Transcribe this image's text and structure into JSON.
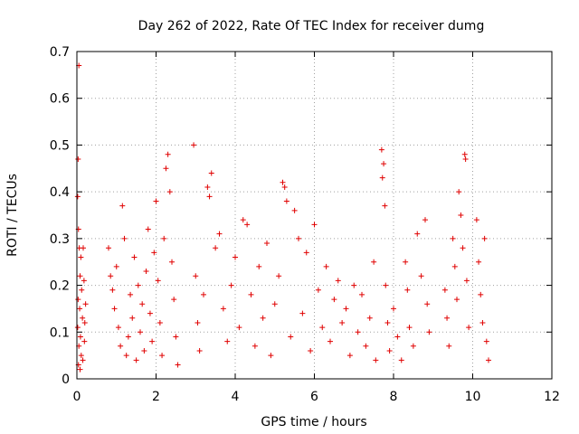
{
  "chart_data": {
    "type": "scatter",
    "title": "Day 262 of 2022, Rate Of TEC Index for receiver dumg",
    "xlabel": "GPS time / hours",
    "ylabel": "ROTI / TECUs",
    "xlim": [
      0,
      12
    ],
    "ylim": [
      0,
      0.7
    ],
    "xticks": [
      0,
      2,
      4,
      6,
      8,
      10,
      12
    ],
    "yticks": [
      0,
      0.1,
      0.2,
      0.3,
      0.4,
      0.5,
      0.6,
      0.7
    ],
    "xtick_labels": [
      "0",
      "2",
      "4",
      "6",
      "8",
      "10",
      "12"
    ],
    "ytick_labels": [
      "0",
      "0.1",
      "0.2",
      "0.3",
      "0.4",
      "0.5",
      "0.6",
      "0.7"
    ],
    "grid": true,
    "marker": "+",
    "marker_color": "#e00000",
    "series": [
      {
        "points": [
          [
            0.05,
            0.67
          ],
          [
            0.03,
            0.47
          ],
          [
            0.02,
            0.39
          ],
          [
            0.04,
            0.32
          ],
          [
            0.06,
            0.28
          ],
          [
            0.1,
            0.26
          ],
          [
            0.08,
            0.22
          ],
          [
            0.12,
            0.19
          ],
          [
            0.03,
            0.17
          ],
          [
            0.07,
            0.15
          ],
          [
            0.14,
            0.13
          ],
          [
            0.02,
            0.11
          ],
          [
            0.09,
            0.09
          ],
          [
            0.05,
            0.07
          ],
          [
            0.11,
            0.05
          ],
          [
            0.04,
            0.03
          ],
          [
            0.08,
            0.02
          ],
          [
            0.15,
            0.04
          ],
          [
            0.16,
            0.28
          ],
          [
            0.18,
            0.21
          ],
          [
            0.2,
            0.12
          ],
          [
            0.22,
            0.16
          ],
          [
            0.19,
            0.08
          ],
          [
            0.8,
            0.28
          ],
          [
            0.85,
            0.22
          ],
          [
            0.9,
            0.19
          ],
          [
            0.95,
            0.15
          ],
          [
            1.0,
            0.24
          ],
          [
            1.05,
            0.11
          ],
          [
            1.1,
            0.07
          ],
          [
            1.15,
            0.37
          ],
          [
            1.2,
            0.3
          ],
          [
            1.25,
            0.05
          ],
          [
            1.3,
            0.09
          ],
          [
            1.35,
            0.18
          ],
          [
            1.4,
            0.13
          ],
          [
            1.45,
            0.26
          ],
          [
            1.5,
            0.04
          ],
          [
            1.55,
            0.2
          ],
          [
            1.6,
            0.1
          ],
          [
            1.65,
            0.16
          ],
          [
            1.7,
            0.06
          ],
          [
            1.75,
            0.23
          ],
          [
            1.8,
            0.32
          ],
          [
            1.85,
            0.14
          ],
          [
            1.9,
            0.08
          ],
          [
            1.95,
            0.27
          ],
          [
            2.0,
            0.38
          ],
          [
            2.05,
            0.21
          ],
          [
            2.1,
            0.12
          ],
          [
            2.15,
            0.05
          ],
          [
            2.2,
            0.3
          ],
          [
            2.25,
            0.45
          ],
          [
            2.3,
            0.48
          ],
          [
            2.35,
            0.4
          ],
          [
            2.4,
            0.25
          ],
          [
            2.45,
            0.17
          ],
          [
            2.5,
            0.09
          ],
          [
            2.55,
            0.03
          ],
          [
            2.95,
            0.5
          ],
          [
            3.0,
            0.22
          ],
          [
            3.05,
            0.12
          ],
          [
            3.1,
            0.06
          ],
          [
            3.2,
            0.18
          ],
          [
            3.3,
            0.41
          ],
          [
            3.35,
            0.39
          ],
          [
            3.4,
            0.44
          ],
          [
            3.5,
            0.28
          ],
          [
            3.6,
            0.31
          ],
          [
            3.7,
            0.15
          ],
          [
            3.8,
            0.08
          ],
          [
            3.9,
            0.2
          ],
          [
            4.0,
            0.26
          ],
          [
            4.1,
            0.11
          ],
          [
            4.2,
            0.34
          ],
          [
            4.3,
            0.33
          ],
          [
            4.4,
            0.18
          ],
          [
            4.5,
            0.07
          ],
          [
            4.6,
            0.24
          ],
          [
            4.7,
            0.13
          ],
          [
            4.8,
            0.29
          ],
          [
            4.9,
            0.05
          ],
          [
            5.0,
            0.16
          ],
          [
            5.1,
            0.22
          ],
          [
            5.2,
            0.42
          ],
          [
            5.25,
            0.41
          ],
          [
            5.3,
            0.38
          ],
          [
            5.4,
            0.09
          ],
          [
            5.5,
            0.36
          ],
          [
            5.6,
            0.3
          ],
          [
            5.7,
            0.14
          ],
          [
            5.8,
            0.27
          ],
          [
            5.9,
            0.06
          ],
          [
            6.0,
            0.33
          ],
          [
            6.1,
            0.19
          ],
          [
            6.2,
            0.11
          ],
          [
            6.3,
            0.24
          ],
          [
            6.4,
            0.08
          ],
          [
            6.5,
            0.17
          ],
          [
            6.6,
            0.21
          ],
          [
            6.7,
            0.12
          ],
          [
            6.8,
            0.15
          ],
          [
            6.9,
            0.05
          ],
          [
            7.0,
            0.2
          ],
          [
            7.1,
            0.1
          ],
          [
            7.2,
            0.18
          ],
          [
            7.3,
            0.07
          ],
          [
            7.4,
            0.13
          ],
          [
            7.5,
            0.25
          ],
          [
            7.55,
            0.04
          ],
          [
            7.7,
            0.49
          ],
          [
            7.75,
            0.46
          ],
          [
            7.72,
            0.43
          ],
          [
            7.78,
            0.37
          ],
          [
            7.8,
            0.2
          ],
          [
            7.85,
            0.12
          ],
          [
            7.9,
            0.06
          ],
          [
            8.0,
            0.15
          ],
          [
            8.1,
            0.09
          ],
          [
            8.2,
            0.04
          ],
          [
            8.3,
            0.25
          ],
          [
            8.35,
            0.19
          ],
          [
            8.4,
            0.11
          ],
          [
            8.5,
            0.07
          ],
          [
            8.6,
            0.31
          ],
          [
            8.7,
            0.22
          ],
          [
            8.8,
            0.34
          ],
          [
            8.85,
            0.16
          ],
          [
            8.9,
            0.1
          ],
          [
            9.3,
            0.19
          ],
          [
            9.35,
            0.13
          ],
          [
            9.4,
            0.07
          ],
          [
            9.5,
            0.3
          ],
          [
            9.55,
            0.24
          ],
          [
            9.6,
            0.17
          ],
          [
            9.65,
            0.4
          ],
          [
            9.7,
            0.35
          ],
          [
            9.75,
            0.28
          ],
          [
            9.8,
            0.48
          ],
          [
            9.82,
            0.47
          ],
          [
            9.85,
            0.21
          ],
          [
            9.9,
            0.11
          ],
          [
            10.1,
            0.34
          ],
          [
            10.15,
            0.25
          ],
          [
            10.2,
            0.18
          ],
          [
            10.25,
            0.12
          ],
          [
            10.3,
            0.3
          ],
          [
            10.35,
            0.08
          ],
          [
            10.4,
            0.04
          ]
        ]
      }
    ]
  }
}
